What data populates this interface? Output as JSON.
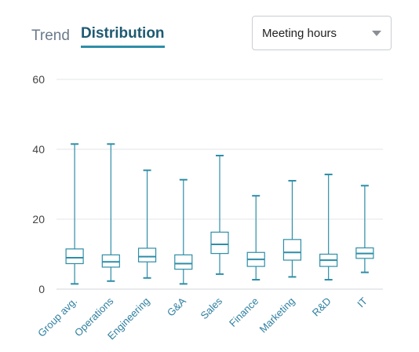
{
  "tabs": [
    {
      "label": "Trend",
      "active": false
    },
    {
      "label": "Distribution",
      "active": true
    }
  ],
  "metric_select": {
    "value": "Meeting hours"
  },
  "colors": {
    "accent": "#2e8ea7",
    "grid": "#e3e6ea"
  },
  "chart_data": {
    "type": "boxplot",
    "title": "",
    "xlabel": "",
    "ylabel": "",
    "ylim": [
      0,
      60
    ],
    "yticks": [
      0,
      20,
      40,
      60
    ],
    "grid": true,
    "categories": [
      "Group avg.",
      "Operations",
      "Engineering",
      "G&A",
      "Sales",
      "Finance",
      "Marketing",
      "R&D",
      "IT"
    ],
    "boxes": [
      {
        "min": 1.5,
        "q1": 7.3,
        "median": 9.0,
        "q3": 11.5,
        "max": 41.5
      },
      {
        "min": 2.3,
        "q1": 6.3,
        "median": 7.8,
        "q3": 9.8,
        "max": 41.5
      },
      {
        "min": 3.2,
        "q1": 7.8,
        "median": 9.3,
        "q3": 11.7,
        "max": 34.0
      },
      {
        "min": 1.5,
        "q1": 5.7,
        "median": 7.3,
        "q3": 9.8,
        "max": 31.3
      },
      {
        "min": 4.3,
        "q1": 10.2,
        "median": 12.8,
        "q3": 16.3,
        "max": 38.2
      },
      {
        "min": 2.7,
        "q1": 6.5,
        "median": 8.5,
        "q3": 10.5,
        "max": 26.7
      },
      {
        "min": 3.5,
        "q1": 8.3,
        "median": 10.5,
        "q3": 14.2,
        "max": 31.0
      },
      {
        "min": 2.7,
        "q1": 6.5,
        "median": 8.3,
        "q3": 10.0,
        "max": 32.8
      },
      {
        "min": 4.8,
        "q1": 8.8,
        "median": 10.2,
        "q3": 11.8,
        "max": 29.6
      }
    ]
  }
}
